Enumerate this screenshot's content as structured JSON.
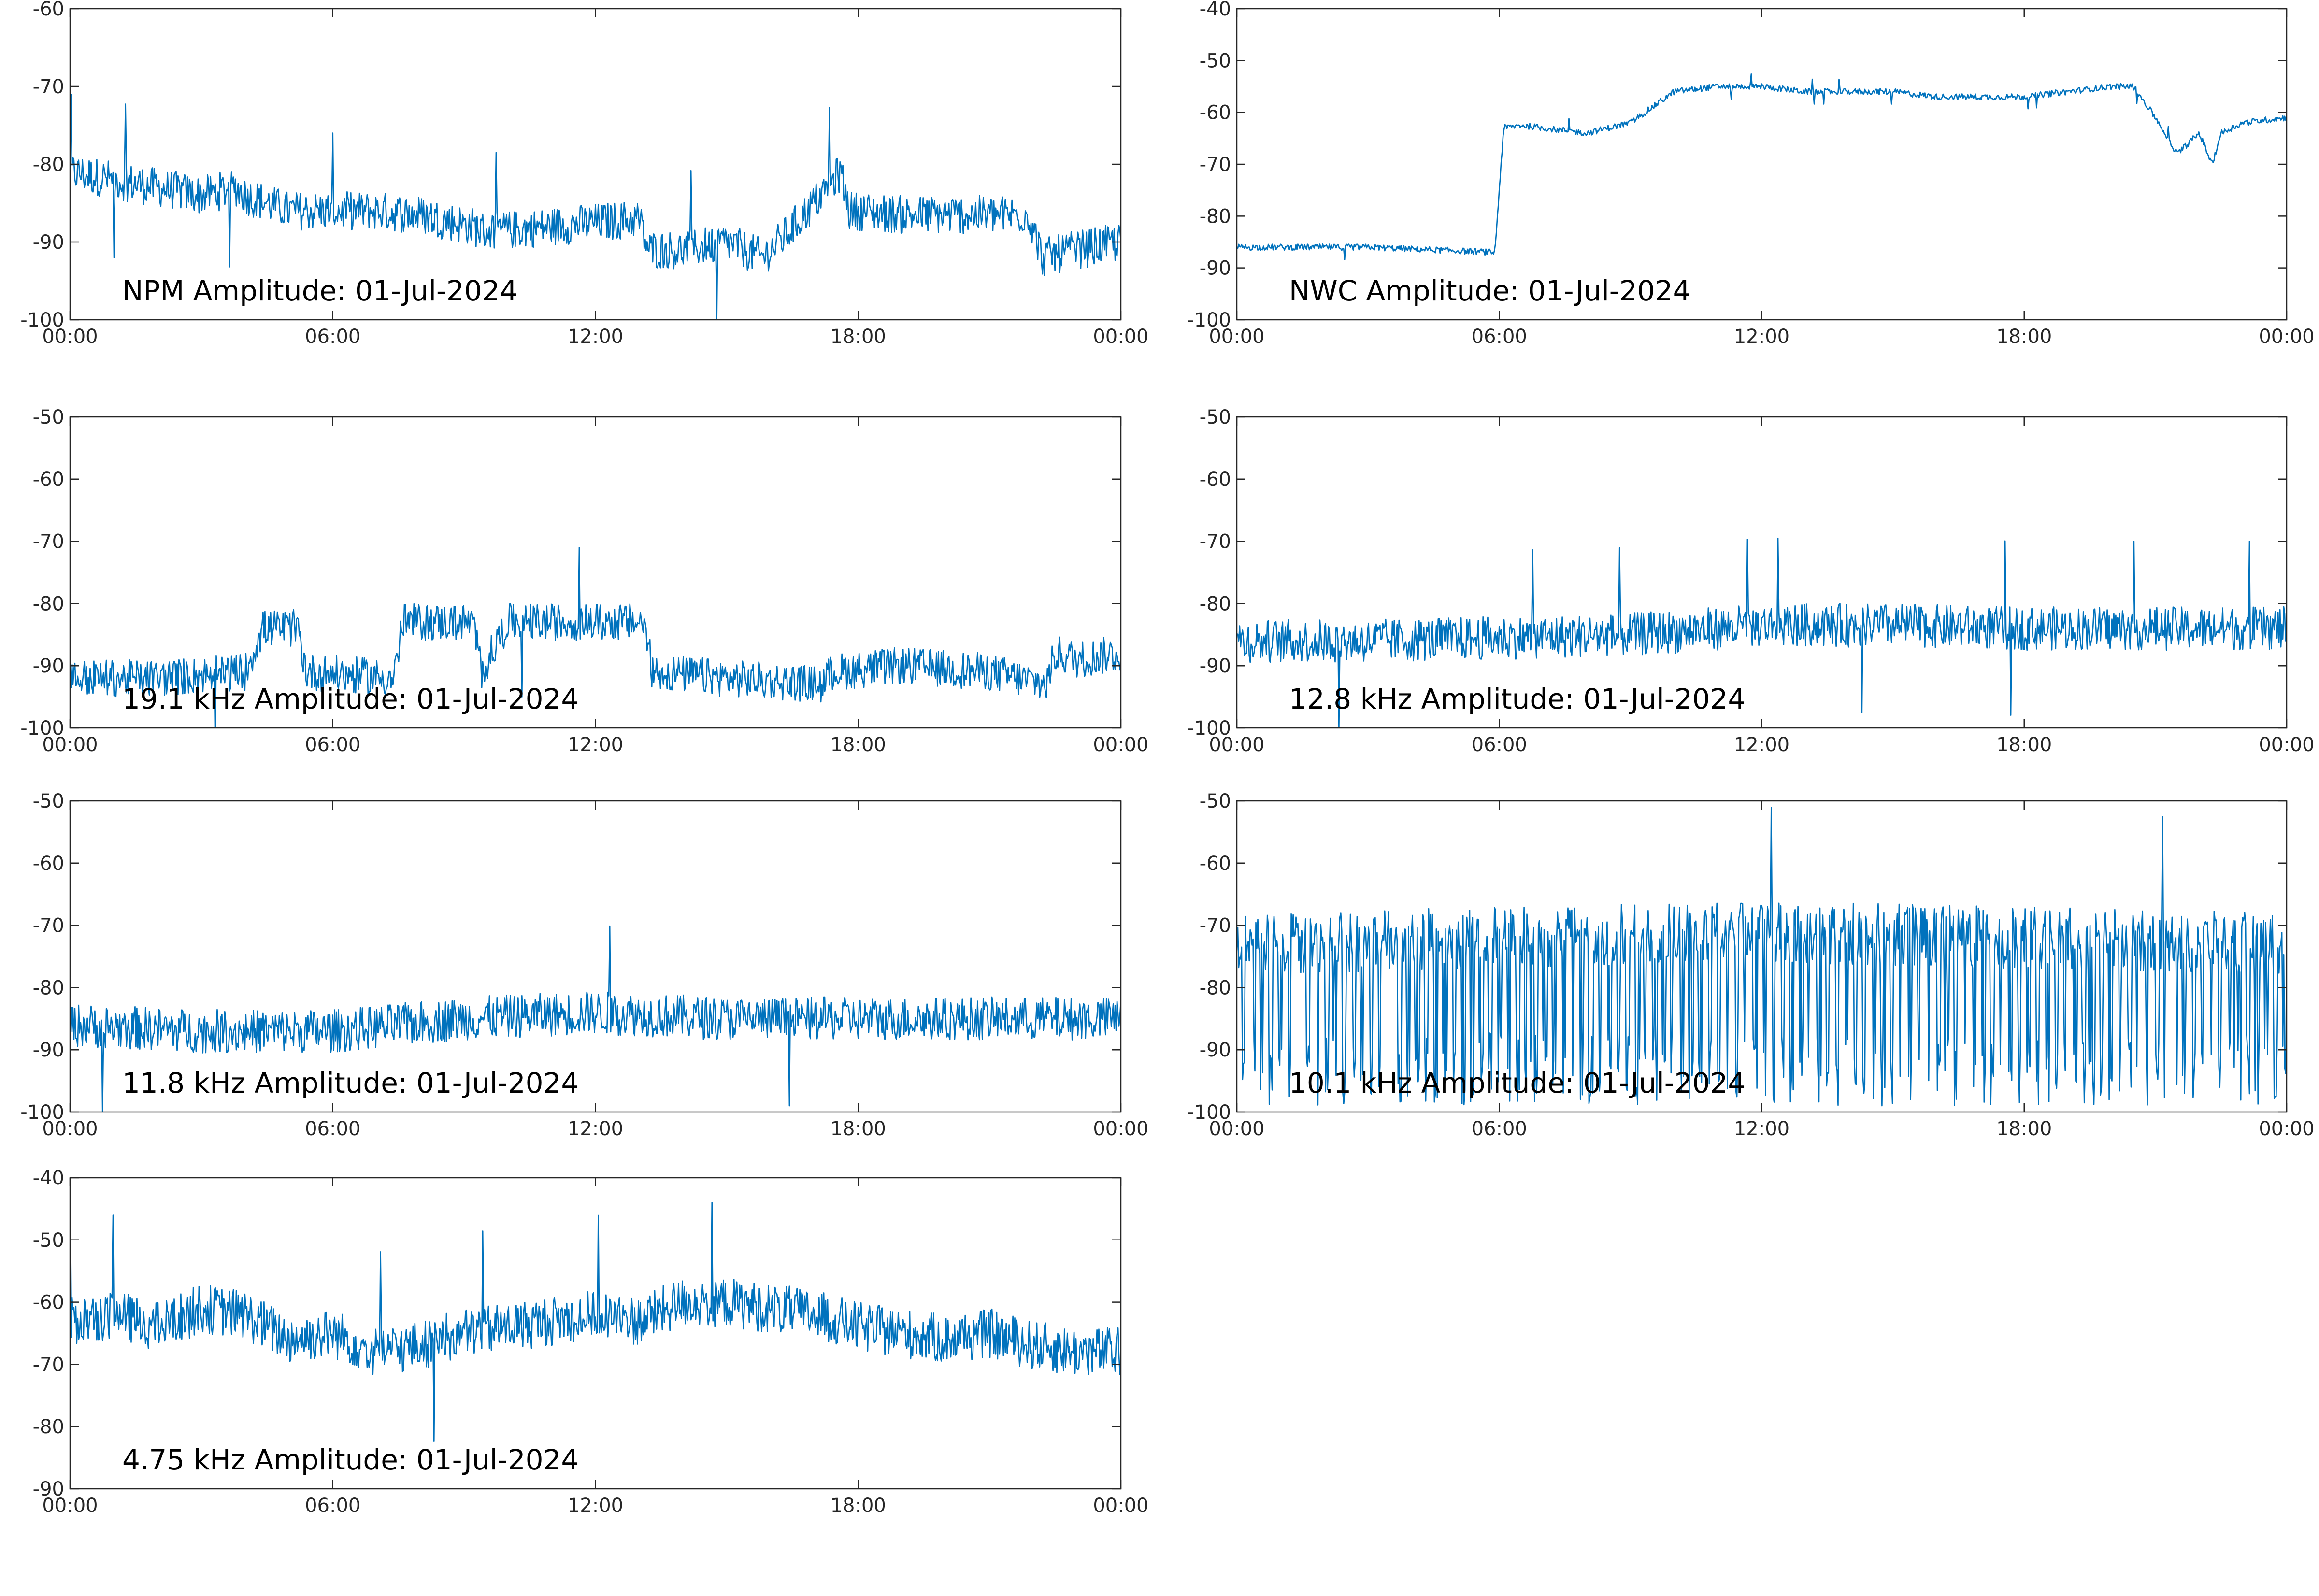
{
  "colors": {
    "series": "#0072bd",
    "axis": "#262626",
    "background": "#ffffff"
  },
  "chart_data": [
    {
      "type": "line",
      "title": "NPM Amplitude: 01-Jul-2024",
      "xlabel": "",
      "ylabel": "",
      "x_tick_labels": [
        "00:00",
        "06:00",
        "12:00",
        "18:00",
        "00:00"
      ],
      "x_range_hours": [
        0,
        24
      ],
      "ylim": [
        -100,
        -60
      ],
      "y_ticks": [
        -60,
        -70,
        -80,
        -90,
        -100
      ],
      "grid": false,
      "series": [
        {
          "x_hours": [
            0,
            1,
            2,
            3,
            3.8,
            4,
            5,
            6,
            7,
            8,
            9.2,
            9.4,
            10,
            11,
            12,
            13,
            13.2,
            14,
            15,
            15.8,
            16.2,
            17,
            17.6,
            17.8,
            18,
            19,
            20,
            21,
            21.9,
            22.2,
            23,
            24
          ],
          "values": [
            -81,
            -82,
            -83,
            -84,
            -83,
            -84,
            -86,
            -86,
            -86,
            -86.5,
            -88,
            -88.5,
            -88.5,
            -88,
            -87.5,
            -87,
            -91,
            -91,
            -90,
            -92,
            -90,
            -85,
            -81,
            -86,
            -86,
            -86.5,
            -86.5,
            -86.5,
            -86.5,
            -92,
            -91,
            -90
          ],
          "noise_amplitude_db": 2.5
        }
      ]
    },
    {
      "type": "line",
      "title": "NWC Amplitude: 01-Jul-2024",
      "xlabel": "",
      "ylabel": "",
      "x_tick_labels": [
        "00:00",
        "06:00",
        "12:00",
        "18:00",
        "00:00"
      ],
      "x_range_hours": [
        0,
        24
      ],
      "ylim": [
        -100,
        -40
      ],
      "y_ticks": [
        -40,
        -50,
        -60,
        -70,
        -80,
        -90,
        -100
      ],
      "grid": false,
      "series": [
        {
          "x_hours": [
            0,
            3,
            5.9,
            6.1,
            6.5,
            7,
            8,
            9,
            10,
            11,
            12,
            13,
            14,
            15,
            16,
            17,
            18,
            19,
            20,
            20.5,
            21,
            21.5,
            22,
            22.3,
            22.5,
            23,
            24
          ],
          "values": [
            -86,
            -86,
            -87,
            -63,
            -62.5,
            -63,
            -64,
            -62,
            -56,
            -55,
            -55,
            -56,
            -56,
            -56,
            -57,
            -57,
            -57,
            -56,
            -55,
            -55,
            -61,
            -68,
            -64,
            -70,
            -64,
            -62,
            -61
          ],
          "noise_amplitude_db": 0.6
        }
      ]
    },
    {
      "type": "line",
      "title": "19.1 kHz Amplitude: 01-Jul-2024",
      "xlabel": "",
      "ylabel": "",
      "x_tick_labels": [
        "00:00",
        "06:00",
        "12:00",
        "18:00",
        "00:00"
      ],
      "x_range_hours": [
        0,
        24
      ],
      "ylim": [
        -100,
        -50
      ],
      "y_ticks": [
        -50,
        -60,
        -70,
        -80,
        -90,
        -100
      ],
      "grid": false,
      "series": [
        {
          "x_hours": [
            0,
            2,
            4,
            4.4,
            5.2,
            5.4,
            7.4,
            7.6,
            9.2,
            9.4,
            10,
            11.5,
            13.1,
            13.3,
            15,
            17.2,
            17.4,
            19,
            21,
            22.3,
            22.5,
            23,
            24
          ],
          "values": [
            -92,
            -92,
            -91,
            -84,
            -84,
            -91,
            -92,
            -83,
            -83,
            -91,
            -83,
            -83,
            -83,
            -91,
            -92,
            -93,
            -91,
            -90,
            -91,
            -93,
            -88,
            -89,
            -88
          ],
          "noise_amplitude_db": 3
        }
      ]
    },
    {
      "type": "line",
      "title": "12.8 kHz Amplitude: 01-Jul-2024",
      "xlabel": "",
      "ylabel": "",
      "x_tick_labels": [
        "00:00",
        "06:00",
        "12:00",
        "18:00",
        "00:00"
      ],
      "x_range_hours": [
        0,
        24
      ],
      "ylim": [
        -100,
        -50
      ],
      "y_ticks": [
        -50,
        -60,
        -70,
        -80,
        -90,
        -100
      ],
      "grid": false,
      "series": [
        {
          "x_hours": [
            0,
            3,
            6,
            9,
            12,
            15,
            18,
            21,
            24
          ],
          "values": [
            -86,
            -86,
            -85.5,
            -85,
            -83.5,
            -83.5,
            -84,
            -84,
            -84
          ],
          "noise_amplitude_db": 3.5
        }
      ]
    },
    {
      "type": "line",
      "title": "11.8 kHz Amplitude: 01-Jul-2024",
      "xlabel": "",
      "ylabel": "",
      "x_tick_labels": [
        "00:00",
        "06:00",
        "12:00",
        "18:00",
        "00:00"
      ],
      "x_range_hours": [
        0,
        24
      ],
      "ylim": [
        -100,
        -50
      ],
      "y_ticks": [
        -50,
        -60,
        -70,
        -80,
        -90,
        -100
      ],
      "grid": false,
      "series": [
        {
          "x_hours": [
            0,
            3,
            6,
            9,
            12,
            15,
            18,
            21,
            24
          ],
          "values": [
            -86,
            -87,
            -87,
            -85,
            -84,
            -85,
            -85,
            -85,
            -85
          ],
          "noise_amplitude_db": 3.5
        }
      ]
    },
    {
      "type": "line",
      "title": "10.1 kHz Amplitude: 01-Jul-2024",
      "xlabel": "",
      "ylabel": "",
      "x_tick_labels": [
        "00:00",
        "06:00",
        "12:00",
        "18:00",
        "00:00"
      ],
      "x_range_hours": [
        0,
        24
      ],
      "ylim": [
        -100,
        -50
      ],
      "y_ticks": [
        -50,
        -60,
        -70,
        -80,
        -90,
        -100
      ],
      "grid": false,
      "series": [
        {
          "x_hours": [
            0,
            6,
            12,
            18,
            24
          ],
          "values": [
            -73,
            -72,
            -71,
            -72,
            -73
          ],
          "noise_amplitude_db": 5,
          "oscillation_cycles": 115,
          "oscillation_low_db": -99
        }
      ]
    },
    {
      "type": "line",
      "title": "4.75 kHz Amplitude: 01-Jul-2024",
      "xlabel": "",
      "ylabel": "",
      "x_tick_labels": [
        "00:00",
        "06:00",
        "12:00",
        "18:00",
        "00:00"
      ],
      "x_range_hours": [
        0,
        24
      ],
      "ylim": [
        -90,
        -40
      ],
      "y_ticks": [
        -40,
        -50,
        -60,
        -70,
        -80,
        -90
      ],
      "grid": false,
      "series": [
        {
          "x_hours": [
            0,
            1,
            2,
            3,
            4,
            5,
            6,
            7,
            8,
            9,
            10,
            11,
            12,
            13,
            14,
            15,
            16,
            17,
            18,
            19,
            20,
            21,
            22,
            23,
            24
          ],
          "values": [
            -63,
            -62,
            -64,
            -61,
            -62,
            -66,
            -65,
            -68,
            -67,
            -65,
            -64,
            -63,
            -62,
            -63,
            -60,
            -60,
            -61,
            -62,
            -64,
            -65,
            -66,
            -65,
            -67,
            -68,
            -68
          ],
          "noise_amplitude_db": 4
        }
      ]
    }
  ]
}
